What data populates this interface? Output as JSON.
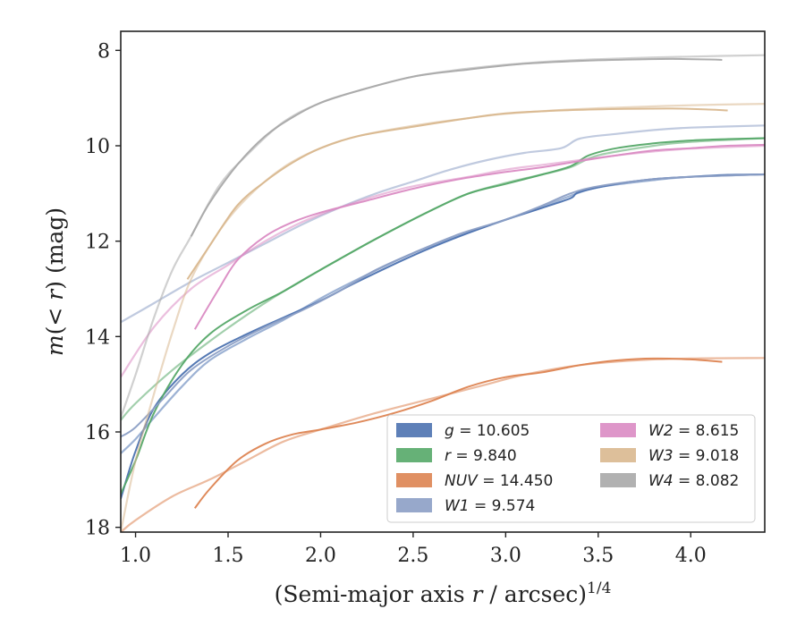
{
  "chart_data": {
    "type": "line",
    "xlabel": "(Semi-major axis r / arcsec)",
    "xlabel_main": "(Semi-major axis ",
    "xlabel_var": "r",
    "xlabel_rest": " / arcsec)",
    "xlabel_exp": "1/4",
    "ylabel_prefix": "m(",
    "ylabel_op": "< ",
    "ylabel_var": "r",
    "ylabel_suffix": ") (mag)",
    "xlim": [
      0.92,
      4.4
    ],
    "ylim": [
      18.1,
      7.6
    ],
    "y_inverted": true,
    "xticks": [
      1.0,
      1.5,
      2.0,
      2.5,
      3.0,
      3.5,
      4.0
    ],
    "xtick_labels": [
      "1.0",
      "1.5",
      "2.0",
      "2.5",
      "3.0",
      "3.5",
      "4.0"
    ],
    "yticks": [
      8,
      10,
      12,
      14,
      16,
      18
    ],
    "ytick_labels": [
      "8",
      "10",
      "12",
      "14",
      "16",
      "18"
    ],
    "grid": false,
    "legend": {
      "placement": "lower-right",
      "columns": 2
    },
    "series": [
      {
        "name": "g = 10.605",
        "label_var": "g",
        "label_val": "10.605",
        "color": "#4c72b0",
        "profile": [
          [
            0.92,
            17.4
          ],
          [
            1.0,
            16.4
          ],
          [
            1.1,
            15.5
          ],
          [
            1.25,
            14.8
          ],
          [
            1.4,
            14.35
          ],
          [
            1.6,
            13.95
          ],
          [
            1.8,
            13.6
          ],
          [
            2.0,
            13.25
          ],
          [
            2.2,
            12.85
          ],
          [
            2.5,
            12.3
          ],
          [
            2.75,
            11.9
          ],
          [
            3.0,
            11.55
          ],
          [
            3.2,
            11.3
          ],
          [
            3.35,
            11.1
          ],
          [
            3.4,
            10.97
          ],
          [
            3.6,
            10.8
          ],
          [
            3.8,
            10.7
          ],
          [
            4.0,
            10.65
          ],
          [
            4.2,
            10.61
          ],
          [
            4.4,
            10.6
          ]
        ],
        "model": [
          [
            0.92,
            16.45
          ],
          [
            1.0,
            16.15
          ],
          [
            1.1,
            15.7
          ],
          [
            1.25,
            15.05
          ],
          [
            1.4,
            14.5
          ],
          [
            1.6,
            14.05
          ],
          [
            1.8,
            13.65
          ],
          [
            2.0,
            13.2
          ],
          [
            2.2,
            12.8
          ],
          [
            2.5,
            12.25
          ],
          [
            2.75,
            11.88
          ],
          [
            3.0,
            11.55
          ],
          [
            3.2,
            11.28
          ],
          [
            3.35,
            11.05
          ],
          [
            3.5,
            10.87
          ],
          [
            3.8,
            10.72
          ],
          [
            4.0,
            10.65
          ],
          [
            4.4,
            10.6
          ]
        ]
      },
      {
        "name": "r = 9.840",
        "label_var": "r",
        "label_val": "9.840",
        "color": "#55a868",
        "profile": [
          [
            0.92,
            17.3
          ],
          [
            1.0,
            16.6
          ],
          [
            1.1,
            15.6
          ],
          [
            1.25,
            14.6
          ],
          [
            1.4,
            13.95
          ],
          [
            1.6,
            13.45
          ],
          [
            1.8,
            13.05
          ],
          [
            2.0,
            12.6
          ],
          [
            2.3,
            11.95
          ],
          [
            2.6,
            11.35
          ],
          [
            2.8,
            11.0
          ],
          [
            3.0,
            10.8
          ],
          [
            3.2,
            10.6
          ],
          [
            3.35,
            10.43
          ],
          [
            3.45,
            10.2
          ],
          [
            3.6,
            10.05
          ],
          [
            3.8,
            9.95
          ],
          [
            4.0,
            9.89
          ],
          [
            4.2,
            9.86
          ],
          [
            4.4,
            9.84
          ]
        ],
        "model": [
          [
            0.92,
            15.75
          ],
          [
            1.0,
            15.4
          ],
          [
            1.2,
            14.7
          ],
          [
            1.4,
            14.1
          ],
          [
            1.6,
            13.55
          ],
          [
            1.8,
            13.05
          ],
          [
            2.0,
            12.6
          ],
          [
            2.3,
            11.95
          ],
          [
            2.6,
            11.35
          ],
          [
            2.8,
            11.0
          ],
          [
            3.0,
            10.78
          ],
          [
            3.2,
            10.6
          ],
          [
            3.35,
            10.45
          ],
          [
            3.5,
            10.2
          ],
          [
            3.8,
            10.0
          ],
          [
            4.0,
            9.92
          ],
          [
            4.4,
            9.84
          ]
        ]
      },
      {
        "name": "NUV = 14.450",
        "label_var": "NUV",
        "label_val": "14.450",
        "color": "#dd8452",
        "profile": [
          [
            1.32,
            17.6
          ],
          [
            1.4,
            17.2
          ],
          [
            1.55,
            16.6
          ],
          [
            1.7,
            16.25
          ],
          [
            1.85,
            16.05
          ],
          [
            2.0,
            15.95
          ],
          [
            2.2,
            15.8
          ],
          [
            2.4,
            15.6
          ],
          [
            2.6,
            15.35
          ],
          [
            2.8,
            15.05
          ],
          [
            3.0,
            14.85
          ],
          [
            3.2,
            14.75
          ],
          [
            3.4,
            14.6
          ],
          [
            3.6,
            14.5
          ],
          [
            3.8,
            14.46
          ],
          [
            4.0,
            14.48
          ],
          [
            4.17,
            14.53
          ]
        ],
        "model": [
          [
            0.92,
            18.1
          ],
          [
            1.0,
            17.85
          ],
          [
            1.2,
            17.35
          ],
          [
            1.4,
            17.0
          ],
          [
            1.6,
            16.6
          ],
          [
            1.8,
            16.2
          ],
          [
            2.0,
            15.95
          ],
          [
            2.3,
            15.6
          ],
          [
            2.6,
            15.3
          ],
          [
            2.9,
            15.0
          ],
          [
            3.1,
            14.8
          ],
          [
            3.4,
            14.6
          ],
          [
            3.7,
            14.5
          ],
          [
            4.0,
            14.46
          ],
          [
            4.4,
            14.45
          ]
        ]
      },
      {
        "name": "W1 = 9.574",
        "label_var": "W1",
        "label_val": "9.574",
        "color": "#8c9fc5",
        "profile": [
          [
            0.92,
            16.1
          ],
          [
            1.0,
            15.9
          ],
          [
            1.15,
            15.3
          ],
          [
            1.3,
            14.7
          ],
          [
            1.5,
            14.2
          ],
          [
            1.7,
            13.8
          ],
          [
            1.9,
            13.45
          ],
          [
            2.1,
            13.05
          ],
          [
            2.3,
            12.6
          ],
          [
            2.5,
            12.25
          ],
          [
            2.75,
            11.85
          ],
          [
            3.0,
            11.55
          ],
          [
            3.2,
            11.25
          ],
          [
            3.35,
            11.0
          ],
          [
            3.5,
            10.85
          ],
          [
            3.8,
            10.7
          ],
          [
            4.0,
            10.65
          ],
          [
            4.4,
            10.6
          ]
        ],
        "model": [
          [
            0.92,
            13.7
          ],
          [
            1.1,
            13.3
          ],
          [
            1.3,
            12.85
          ],
          [
            1.5,
            12.45
          ],
          [
            1.7,
            12.05
          ],
          [
            1.9,
            11.65
          ],
          [
            2.1,
            11.3
          ],
          [
            2.3,
            11.0
          ],
          [
            2.5,
            10.75
          ],
          [
            2.7,
            10.5
          ],
          [
            2.9,
            10.3
          ],
          [
            3.1,
            10.15
          ],
          [
            3.3,
            10.05
          ],
          [
            3.4,
            9.85
          ],
          [
            3.6,
            9.75
          ],
          [
            3.8,
            9.67
          ],
          [
            4.0,
            9.62
          ],
          [
            4.4,
            9.574
          ]
        ]
      },
      {
        "name": "W2 = 8.615",
        "label_var": "W2",
        "label_val": "8.615",
        "color": "#da8bc3",
        "profile": [
          [
            1.32,
            13.85
          ],
          [
            1.45,
            13.0
          ],
          [
            1.55,
            12.4
          ],
          [
            1.7,
            11.9
          ],
          [
            1.85,
            11.6
          ],
          [
            2.0,
            11.4
          ],
          [
            2.2,
            11.2
          ],
          [
            2.5,
            10.9
          ],
          [
            2.75,
            10.7
          ],
          [
            3.0,
            10.55
          ],
          [
            3.2,
            10.45
          ],
          [
            3.4,
            10.32
          ],
          [
            3.6,
            10.2
          ],
          [
            3.8,
            10.1
          ],
          [
            4.0,
            10.05
          ],
          [
            4.2,
            10.0
          ],
          [
            4.4,
            9.98
          ]
        ],
        "model": [
          [
            0.92,
            14.85
          ],
          [
            1.1,
            13.8
          ],
          [
            1.3,
            13.0
          ],
          [
            1.5,
            12.5
          ],
          [
            1.7,
            12.0
          ],
          [
            1.9,
            11.6
          ],
          [
            2.1,
            11.3
          ],
          [
            2.3,
            11.05
          ],
          [
            2.5,
            10.85
          ],
          [
            2.8,
            10.65
          ],
          [
            3.0,
            10.5
          ],
          [
            3.2,
            10.4
          ],
          [
            3.4,
            10.3
          ],
          [
            3.6,
            10.2
          ],
          [
            3.8,
            10.12
          ],
          [
            4.0,
            10.06
          ],
          [
            4.4,
            10.0
          ]
        ]
      },
      {
        "name": "W3 = 9.018",
        "label_var": "W3",
        "label_val": "9.018",
        "color": "#d9b88f",
        "profile": [
          [
            1.28,
            12.8
          ],
          [
            1.4,
            12.1
          ],
          [
            1.55,
            11.25
          ],
          [
            1.7,
            10.75
          ],
          [
            1.85,
            10.35
          ],
          [
            2.0,
            10.05
          ],
          [
            2.2,
            9.8
          ],
          [
            2.5,
            9.6
          ],
          [
            2.8,
            9.42
          ],
          [
            3.0,
            9.32
          ],
          [
            3.3,
            9.26
          ],
          [
            3.6,
            9.23
          ],
          [
            3.9,
            9.22
          ],
          [
            4.1,
            9.24
          ],
          [
            4.2,
            9.26
          ]
        ],
        "model": [
          [
            0.92,
            18.1
          ],
          [
            1.0,
            16.6
          ],
          [
            1.1,
            15.2
          ],
          [
            1.2,
            13.9
          ],
          [
            1.3,
            12.8
          ],
          [
            1.45,
            11.8
          ],
          [
            1.6,
            11.1
          ],
          [
            1.8,
            10.45
          ],
          [
            2.0,
            10.05
          ],
          [
            2.2,
            9.8
          ],
          [
            2.5,
            9.58
          ],
          [
            2.8,
            9.42
          ],
          [
            3.0,
            9.33
          ],
          [
            3.3,
            9.25
          ],
          [
            3.6,
            9.2
          ],
          [
            4.0,
            9.15
          ],
          [
            4.4,
            9.12
          ]
        ]
      },
      {
        "name": "W4 = 8.082",
        "label_var": "W4",
        "label_val": "8.082",
        "color": "#a9a9a9",
        "profile": [
          [
            1.3,
            11.9
          ],
          [
            1.4,
            11.2
          ],
          [
            1.55,
            10.4
          ],
          [
            1.7,
            9.8
          ],
          [
            1.85,
            9.4
          ],
          [
            2.0,
            9.1
          ],
          [
            2.2,
            8.85
          ],
          [
            2.5,
            8.55
          ],
          [
            2.8,
            8.4
          ],
          [
            3.1,
            8.28
          ],
          [
            3.4,
            8.22
          ],
          [
            3.7,
            8.19
          ],
          [
            3.9,
            8.18
          ],
          [
            4.1,
            8.19
          ],
          [
            4.17,
            8.2
          ]
        ],
        "model": [
          [
            0.92,
            15.7
          ],
          [
            1.0,
            14.8
          ],
          [
            1.1,
            13.6
          ],
          [
            1.2,
            12.6
          ],
          [
            1.3,
            11.9
          ],
          [
            1.45,
            10.85
          ],
          [
            1.6,
            10.2
          ],
          [
            1.8,
            9.5
          ],
          [
            2.0,
            9.1
          ],
          [
            2.2,
            8.85
          ],
          [
            2.5,
            8.55
          ],
          [
            2.8,
            8.38
          ],
          [
            3.1,
            8.27
          ],
          [
            3.4,
            8.2
          ],
          [
            3.7,
            8.16
          ],
          [
            4.0,
            8.13
          ],
          [
            4.4,
            8.1
          ]
        ]
      }
    ]
  }
}
